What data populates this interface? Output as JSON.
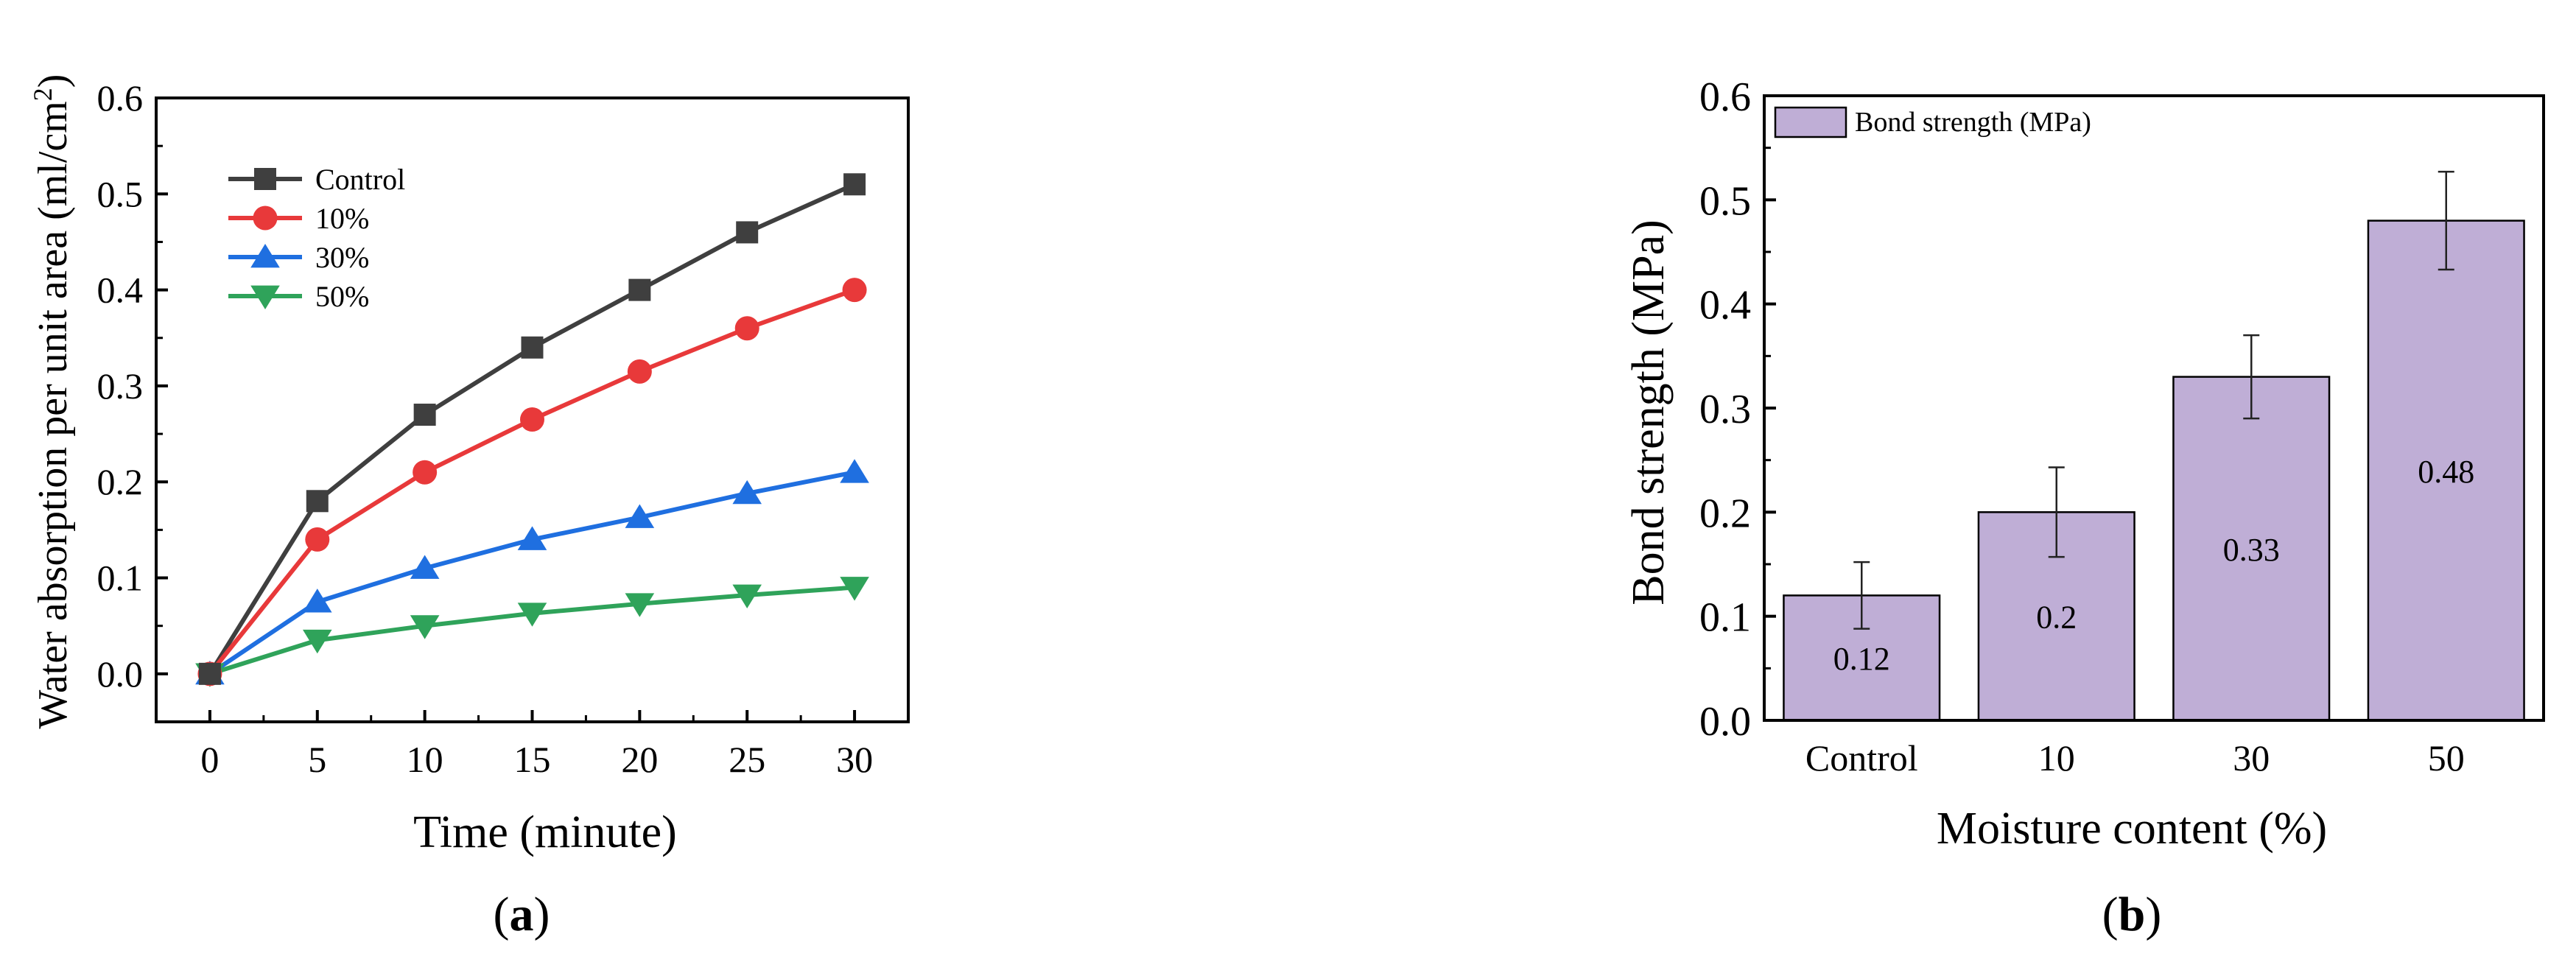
{
  "chart_data": [
    {
      "type": "line",
      "panel_label": "a",
      "xlabel": "Time (minute)",
      "ylabel_main": "Water absorption per unit area (ml/cm",
      "ylabel_sup": "2",
      "ylabel_end": ")",
      "x": [
        0,
        5,
        10,
        15,
        20,
        25,
        30
      ],
      "xticks": [
        "0",
        "5",
        "10",
        "15",
        "20",
        "25",
        "30"
      ],
      "yticks": [
        "0.0",
        "0.1",
        "0.2",
        "0.3",
        "0.4",
        "0.5",
        "0.6"
      ],
      "xlim": [
        -2.5,
        32.5
      ],
      "ylim": [
        -0.05,
        0.6
      ],
      "legend_position": "top-left",
      "series": [
        {
          "name": "Control",
          "color": "#3f3f3f",
          "marker": "square",
          "values": [
            0,
            0.18,
            0.27,
            0.34,
            0.4,
            0.46,
            0.51
          ]
        },
        {
          "name": "10%",
          "color": "#e8393a",
          "marker": "circle",
          "values": [
            0,
            0.14,
            0.21,
            0.265,
            0.315,
            0.36,
            0.4
          ]
        },
        {
          "name": "30%",
          "color": "#1f6fe0",
          "marker": "triangle-up",
          "values": [
            0,
            0.075,
            0.11,
            0.14,
            0.163,
            0.188,
            0.21
          ]
        },
        {
          "name": "50%",
          "color": "#2fa35a",
          "marker": "triangle-down",
          "values": [
            0,
            0.035,
            0.05,
            0.063,
            0.073,
            0.082,
            0.09
          ]
        }
      ]
    },
    {
      "type": "bar",
      "panel_label": "b",
      "xlabel": "Moisture content (%)",
      "ylabel": "Bond strength (MPa)",
      "categories": [
        "Control",
        "10",
        "30",
        "50"
      ],
      "yticks": [
        "0.0",
        "0.1",
        "0.2",
        "0.3",
        "0.4",
        "0.5",
        "0.6"
      ],
      "ylim": [
        0,
        0.6
      ],
      "bar_color": "#bfaed6",
      "legend_position": "top-left",
      "series": [
        {
          "name": "Bond strength (MPa)",
          "values": [
            0.12,
            0.2,
            0.33,
            0.48
          ],
          "errors": [
            0.032,
            0.043,
            0.04,
            0.047
          ],
          "data_labels": [
            "0.12",
            "0.2",
            "0.33",
            "0.48"
          ]
        }
      ]
    }
  ]
}
